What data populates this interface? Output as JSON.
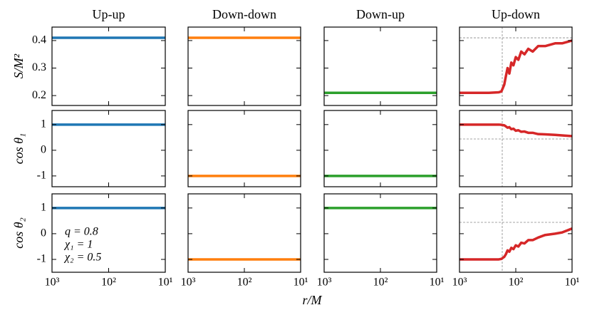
{
  "figure": {
    "xlabel": "r/M"
  },
  "chart_data": [
    {
      "type": "line",
      "title": "Up-up",
      "ylabel": "S/M²",
      "xscale": "log",
      "xlim": [
        1000,
        10
      ],
      "xticks": [
        1000,
        100,
        10
      ],
      "ylim": [
        0.164,
        0.449
      ],
      "yticks": [
        0.2,
        0.3,
        0.4
      ],
      "x": [
        1000,
        10
      ],
      "series": [
        {
          "color": "#1f77b4",
          "values": [
            0.41,
            0.41
          ]
        }
      ]
    },
    {
      "type": "line",
      "title": "Down-down",
      "xscale": "log",
      "xlim": [
        1000,
        10
      ],
      "xticks": [
        1000,
        100,
        10
      ],
      "ylim": [
        0.164,
        0.449
      ],
      "yticks": [
        0.2,
        0.3,
        0.4
      ],
      "x": [
        1000,
        10
      ],
      "series": [
        {
          "color": "#ff7f0e",
          "values": [
            0.41,
            0.41
          ]
        }
      ]
    },
    {
      "type": "line",
      "title": "Down-up",
      "xscale": "log",
      "xlim": [
        1000,
        10
      ],
      "xticks": [
        1000,
        100,
        10
      ],
      "ylim": [
        0.164,
        0.449
      ],
      "yticks": [
        0.2,
        0.3,
        0.4
      ],
      "x": [
        1000,
        10
      ],
      "series": [
        {
          "color": "#2ca02c",
          "values": [
            0.21,
            0.21
          ]
        }
      ]
    },
    {
      "type": "line",
      "title": "Up-down",
      "xscale": "log",
      "xlim": [
        1000,
        10
      ],
      "xticks": [
        1000,
        100,
        10
      ],
      "ylim": [
        0.164,
        0.449
      ],
      "yticks": [
        0.2,
        0.3,
        0.4
      ],
      "hlines": [
        0.41
      ],
      "vlines": [
        174
      ],
      "x": [
        1000,
        500,
        300,
        200,
        180,
        160,
        150,
        140,
        130,
        120,
        110,
        100,
        90,
        80,
        70,
        60,
        50,
        40,
        30,
        20,
        15,
        10
      ],
      "series": [
        {
          "color": "#d62728",
          "values": [
            0.21,
            0.21,
            0.21,
            0.212,
            0.215,
            0.24,
            0.27,
            0.3,
            0.28,
            0.32,
            0.31,
            0.34,
            0.33,
            0.36,
            0.35,
            0.37,
            0.36,
            0.38,
            0.38,
            0.39,
            0.39,
            0.4
          ]
        }
      ]
    },
    {
      "type": "line",
      "ylabel": "cos θ₁",
      "xscale": "log",
      "xlim": [
        1000,
        10
      ],
      "xticks": [
        1000,
        100,
        10
      ],
      "ylim": [
        -1.42,
        1.55
      ],
      "yticks": [
        -1,
        0,
        1
      ],
      "x": [
        1000,
        10
      ],
      "series": [
        {
          "color": "#1f77b4",
          "values": [
            1,
            1
          ]
        }
      ]
    },
    {
      "type": "line",
      "xscale": "log",
      "xlim": [
        1000,
        10
      ],
      "xticks": [
        1000,
        100,
        10
      ],
      "ylim": [
        -1.42,
        1.55
      ],
      "yticks": [
        -1,
        0,
        1
      ],
      "x": [
        1000,
        10
      ],
      "series": [
        {
          "color": "#ff7f0e",
          "values": [
            -1,
            -1
          ]
        }
      ]
    },
    {
      "type": "line",
      "xscale": "log",
      "xlim": [
        1000,
        10
      ],
      "xticks": [
        1000,
        100,
        10
      ],
      "ylim": [
        -1.42,
        1.55
      ],
      "yticks": [
        -1,
        0,
        1
      ],
      "x": [
        1000,
        10
      ],
      "series": [
        {
          "color": "#2ca02c",
          "values": [
            -1,
            -1
          ]
        }
      ]
    },
    {
      "type": "line",
      "xscale": "log",
      "xlim": [
        1000,
        10
      ],
      "xticks": [
        1000,
        100,
        10
      ],
      "ylim": [
        -1.42,
        1.55
      ],
      "yticks": [
        -1,
        0,
        1
      ],
      "hlines": [
        0.44
      ],
      "vlines": [
        174
      ],
      "x": [
        1000,
        500,
        300,
        200,
        180,
        160,
        150,
        140,
        130,
        120,
        110,
        100,
        90,
        80,
        70,
        60,
        50,
        40,
        30,
        20,
        15,
        10
      ],
      "series": [
        {
          "color": "#d62728",
          "values": [
            1,
            1,
            1,
            1,
            0.99,
            0.97,
            0.93,
            0.88,
            0.9,
            0.82,
            0.84,
            0.76,
            0.78,
            0.72,
            0.73,
            0.68,
            0.68,
            0.63,
            0.62,
            0.6,
            0.58,
            0.55
          ]
        }
      ]
    },
    {
      "type": "line",
      "ylabel": "cos θ₂",
      "annotations": [
        "q = 0.8",
        "χ₁ = 1",
        "χ₂ = 0.5"
      ],
      "xscale": "log",
      "xlim": [
        1000,
        10
      ],
      "xticks": [
        {
          "value": 1000,
          "label": "10³"
        },
        {
          "value": 100,
          "label": "10²"
        },
        {
          "value": 10,
          "label": "10¹"
        }
      ],
      "ylim": [
        -1.5,
        1.55
      ],
      "yticks": [
        -1,
        0,
        1
      ],
      "x": [
        1000,
        10
      ],
      "series": [
        {
          "color": "#1f77b4",
          "values": [
            1,
            1
          ]
        }
      ]
    },
    {
      "type": "line",
      "xscale": "log",
      "xlim": [
        1000,
        10
      ],
      "xticks": [
        {
          "value": 1000,
          "label": "10³"
        },
        {
          "value": 100,
          "label": "10²"
        },
        {
          "value": 10,
          "label": "10¹"
        }
      ],
      "ylim": [
        -1.5,
        1.55
      ],
      "yticks": [
        -1,
        0,
        1
      ],
      "x": [
        1000,
        10
      ],
      "series": [
        {
          "color": "#ff7f0e",
          "values": [
            -1,
            -1
          ]
        }
      ]
    },
    {
      "type": "line",
      "xscale": "log",
      "xlim": [
        1000,
        10
      ],
      "xticks": [
        {
          "value": 1000,
          "label": "10³"
        },
        {
          "value": 100,
          "label": "10²"
        },
        {
          "value": 10,
          "label": "10¹"
        }
      ],
      "ylim": [
        -1.5,
        1.55
      ],
      "yticks": [
        -1,
        0,
        1
      ],
      "x": [
        1000,
        10
      ],
      "series": [
        {
          "color": "#2ca02c",
          "values": [
            1,
            1
          ]
        }
      ]
    },
    {
      "type": "line",
      "xscale": "log",
      "xlim": [
        1000,
        10
      ],
      "xticks": [
        {
          "value": 1000,
          "label": "10³"
        },
        {
          "value": 100,
          "label": "10²"
        },
        {
          "value": 10,
          "label": "10¹"
        }
      ],
      "ylim": [
        -1.5,
        1.55
      ],
      "yticks": [
        -1,
        0,
        1
      ],
      "hlines": [
        0.44
      ],
      "vlines": [
        174
      ],
      "x": [
        1000,
        500,
        300,
        200,
        180,
        160,
        150,
        140,
        130,
        120,
        110,
        100,
        90,
        80,
        70,
        60,
        50,
        40,
        30,
        20,
        15,
        10
      ],
      "series": [
        {
          "color": "#d62728",
          "values": [
            -1,
            -1,
            -1,
            -1,
            -0.98,
            -0.9,
            -0.8,
            -0.65,
            -0.7,
            -0.55,
            -0.6,
            -0.45,
            -0.5,
            -0.35,
            -0.38,
            -0.25,
            -0.25,
            -0.15,
            -0.05,
            0,
            0.05,
            0.2
          ]
        }
      ]
    }
  ]
}
